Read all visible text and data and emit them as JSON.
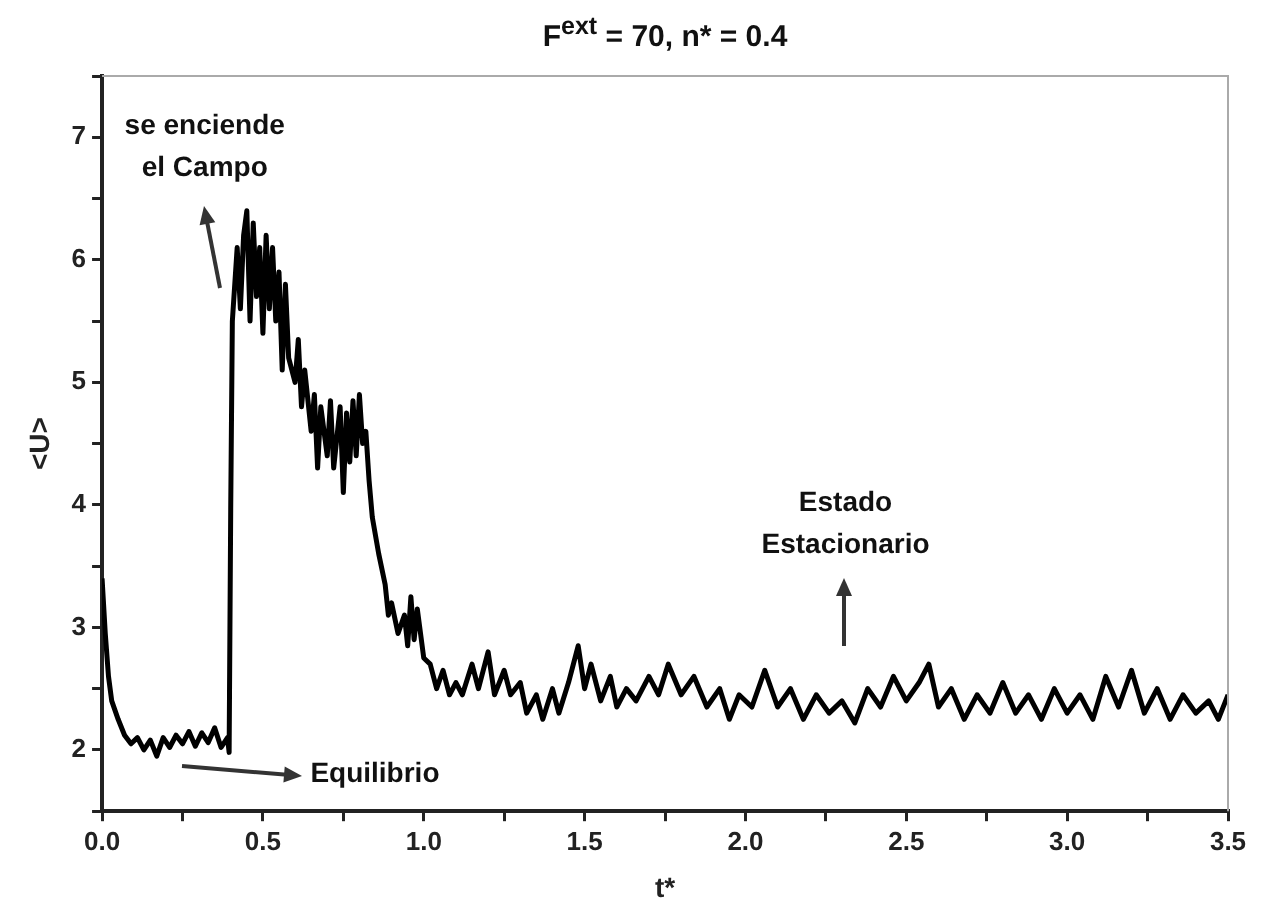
{
  "chart_data": {
    "type": "line",
    "title": "F$^{ext}$ = 70, n* = 0.4",
    "xlabel": "t*",
    "ylabel": "<U>",
    "x": [
      0,
      0.01,
      0.02,
      0.03,
      0.05,
      0.07,
      0.09,
      0.11,
      0.13,
      0.15,
      0.17,
      0.19,
      0.21,
      0.23,
      0.25,
      0.27,
      0.29,
      0.31,
      0.33,
      0.35,
      0.37,
      0.39,
      0.395,
      0.4,
      0.405,
      0.42,
      0.43,
      0.44,
      0.45,
      0.46,
      0.47,
      0.48,
      0.49,
      0.5,
      0.51,
      0.52,
      0.53,
      0.54,
      0.55,
      0.56,
      0.57,
      0.58,
      0.6,
      0.61,
      0.62,
      0.63,
      0.65,
      0.66,
      0.67,
      0.68,
      0.7,
      0.71,
      0.72,
      0.74,
      0.75,
      0.76,
      0.77,
      0.78,
      0.79,
      0.8,
      0.81,
      0.82,
      0.83,
      0.84,
      0.86,
      0.88,
      0.89,
      0.9,
      0.92,
      0.94,
      0.95,
      0.96,
      0.97,
      0.98,
      1.0,
      1.02,
      1.04,
      1.06,
      1.08,
      1.1,
      1.12,
      1.15,
      1.17,
      1.2,
      1.22,
      1.25,
      1.27,
      1.3,
      1.32,
      1.35,
      1.37,
      1.4,
      1.42,
      1.45,
      1.48,
      1.5,
      1.52,
      1.55,
      1.58,
      1.6,
      1.63,
      1.66,
      1.7,
      1.73,
      1.76,
      1.8,
      1.84,
      1.88,
      1.92,
      1.95,
      1.98,
      2.02,
      2.06,
      2.1,
      2.14,
      2.18,
      2.22,
      2.26,
      2.3,
      2.34,
      2.38,
      2.42,
      2.46,
      2.5,
      2.54,
      2.57,
      2.6,
      2.64,
      2.68,
      2.72,
      2.76,
      2.8,
      2.84,
      2.88,
      2.92,
      2.96,
      3.0,
      3.04,
      3.08,
      3.12,
      3.16,
      3.2,
      3.24,
      3.28,
      3.32,
      3.36,
      3.4,
      3.44,
      3.47,
      3.5
    ],
    "series": [
      {
        "color": "#000000",
        "values": [
          3.4,
          2.95,
          2.6,
          2.4,
          2.25,
          2.12,
          2.05,
          2.1,
          2.0,
          2.08,
          1.95,
          2.1,
          2.02,
          2.12,
          2.05,
          2.15,
          2.03,
          2.14,
          2.06,
          2.18,
          2.02,
          2.1,
          1.98,
          4.0,
          5.5,
          6.1,
          5.6,
          6.2,
          6.4,
          5.5,
          6.3,
          5.7,
          6.1,
          5.4,
          6.2,
          5.6,
          6.1,
          5.5,
          5.9,
          5.1,
          5.8,
          5.2,
          5.0,
          5.35,
          4.8,
          5.1,
          4.6,
          4.9,
          4.3,
          4.8,
          4.4,
          4.85,
          4.3,
          4.8,
          4.1,
          4.75,
          4.35,
          4.85,
          4.4,
          4.9,
          4.5,
          4.6,
          4.2,
          3.9,
          3.6,
          3.35,
          3.1,
          3.2,
          2.95,
          3.1,
          2.85,
          3.25,
          2.9,
          3.15,
          2.75,
          2.7,
          2.5,
          2.65,
          2.45,
          2.55,
          2.45,
          2.7,
          2.5,
          2.8,
          2.45,
          2.65,
          2.45,
          2.55,
          2.3,
          2.45,
          2.25,
          2.5,
          2.3,
          2.55,
          2.85,
          2.5,
          2.7,
          2.4,
          2.6,
          2.35,
          2.5,
          2.4,
          2.6,
          2.45,
          2.7,
          2.45,
          2.6,
          2.35,
          2.5,
          2.25,
          2.45,
          2.35,
          2.65,
          2.35,
          2.5,
          2.25,
          2.45,
          2.3,
          2.4,
          2.22,
          2.5,
          2.35,
          2.6,
          2.4,
          2.55,
          2.7,
          2.35,
          2.5,
          2.25,
          2.45,
          2.3,
          2.55,
          2.3,
          2.45,
          2.25,
          2.5,
          2.3,
          2.45,
          2.25,
          2.6,
          2.35,
          2.65,
          2.3,
          2.5,
          2.25,
          2.45,
          2.3,
          2.4,
          2.25,
          2.45
        ]
      }
    ],
    "xlim": [
      0,
      3.5
    ],
    "ylim": [
      1.5,
      7.5
    ],
    "xticks": [
      {
        "value": 0,
        "label": "0.0"
      },
      {
        "value": 0.25,
        "label": null
      },
      {
        "value": 0.5,
        "label": "0.5"
      },
      {
        "value": 0.75,
        "label": null
      },
      {
        "value": 1,
        "label": "1.0"
      },
      {
        "value": 1.25,
        "label": null
      },
      {
        "value": 1.5,
        "label": "1.5"
      },
      {
        "value": 1.75,
        "label": null
      },
      {
        "value": 2,
        "label": "2.0"
      },
      {
        "value": 2.25,
        "label": null
      },
      {
        "value": 2.5,
        "label": "2.5"
      },
      {
        "value": 2.75,
        "label": null
      },
      {
        "value": 3,
        "label": "3.0"
      },
      {
        "value": 3.25,
        "label": null
      },
      {
        "value": 3.5,
        "label": "3.5"
      }
    ],
    "yticks": [
      {
        "value": 1.5,
        "label": null
      },
      2,
      {
        "value": 2.5,
        "label": null
      },
      3,
      {
        "value": 3.5,
        "label": null
      },
      4,
      {
        "value": 4.5,
        "label": null
      },
      5,
      {
        "value": 5.5,
        "label": null
      },
      6,
      {
        "value": 6.5,
        "label": null
      },
      7,
      {
        "value": 7.5,
        "label": null
      }
    ],
    "annotations": [
      "se enciende\nel Campo",
      "Equilibrio",
      "Estado\nEstacionario"
    ]
  }
}
